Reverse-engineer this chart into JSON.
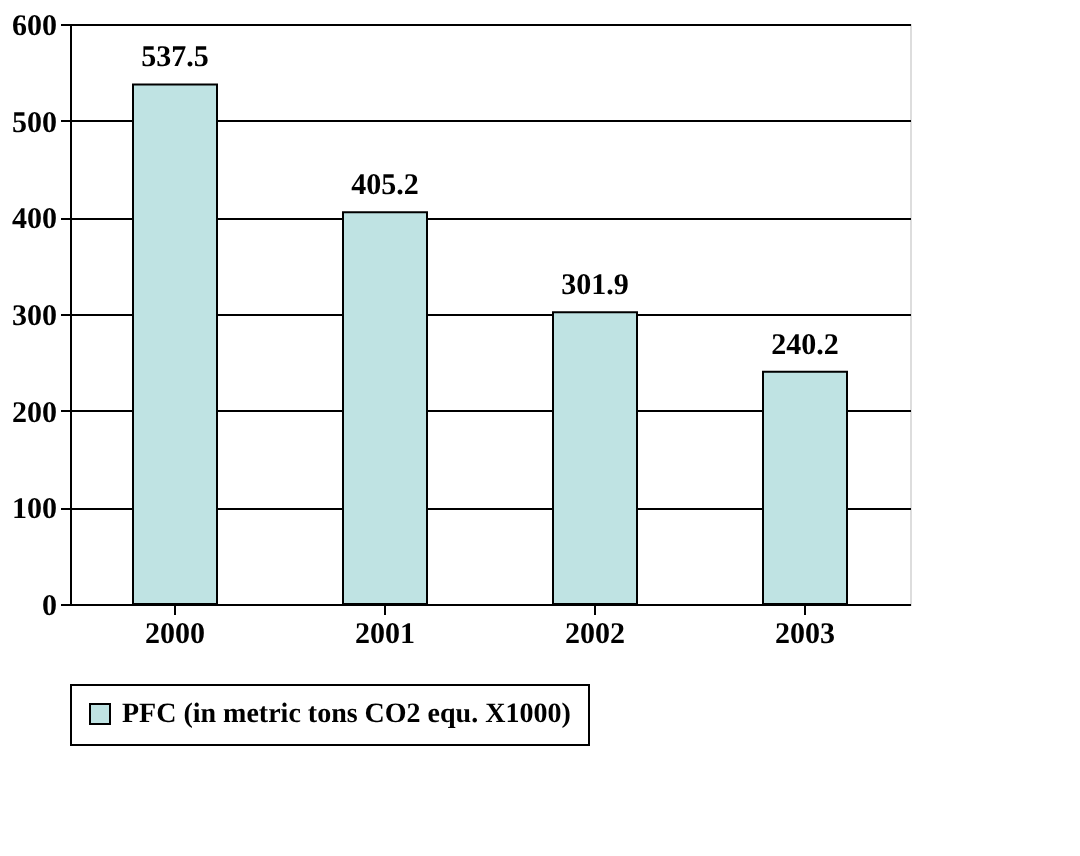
{
  "chart_data": {
    "type": "bar",
    "categories": [
      "2000",
      "2001",
      "2002",
      "2003"
    ],
    "series": [
      {
        "name": "PFC (in metric tons CO2 equ. X1000)",
        "color": "#bfe3e3",
        "values": [
          537.5,
          405.2,
          301.9,
          240.2
        ]
      }
    ],
    "ylim": [
      0,
      600
    ],
    "yticks": [
      0,
      100,
      200,
      300,
      400,
      500,
      600
    ],
    "grid": "y",
    "legend": "bottom",
    "data_labels": true
  }
}
